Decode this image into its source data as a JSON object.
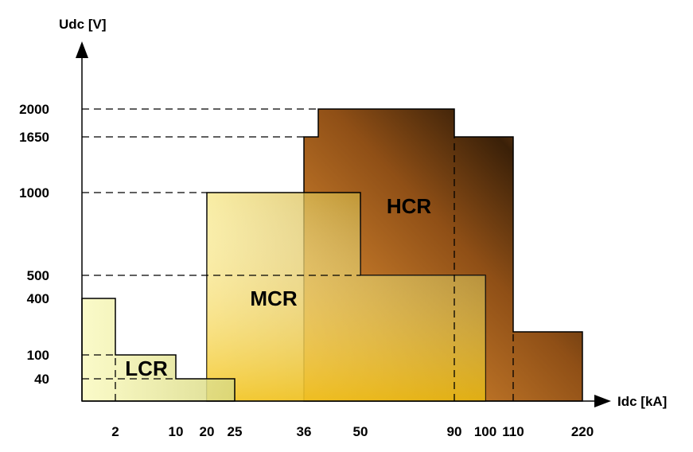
{
  "chart_data": {
    "type": "area",
    "xlabel": "Idc [kA]",
    "ylabel": "Udc [V]",
    "x_ticks": [
      "2",
      "10",
      "20",
      "25",
      "36",
      "50",
      "90",
      "100",
      "110",
      "220"
    ],
    "y_ticks": [
      "40",
      "100",
      "400",
      "500",
      "1000",
      "1650",
      "2000"
    ],
    "grid": false,
    "legend": "none",
    "series": [
      {
        "name": "HCR",
        "color_light": "#f7a23c",
        "color_dark": "#3a2008",
        "outline": [
          [
            36,
            0
          ],
          [
            36,
            1650
          ],
          [
            40,
            1650
          ],
          [
            40,
            2000
          ],
          [
            90,
            2000
          ],
          [
            90,
            1650
          ],
          [
            110,
            1650
          ],
          [
            110,
            200
          ],
          [
            220,
            200
          ],
          [
            220,
            0
          ]
        ]
      },
      {
        "name": "MCR",
        "color_light": "#f7e680",
        "color_dark": "#a07a10",
        "outline": [
          [
            20,
            0
          ],
          [
            20,
            1000
          ],
          [
            50,
            1000
          ],
          [
            50,
            500
          ],
          [
            100,
            500
          ],
          [
            100,
            0
          ]
        ]
      },
      {
        "name": "LCR",
        "color_light": "#fafac0",
        "color_dark": "#d8d880",
        "outline": [
          [
            0,
            0
          ],
          [
            0,
            400
          ],
          [
            2,
            400
          ],
          [
            2,
            100
          ],
          [
            10,
            100
          ],
          [
            10,
            40
          ],
          [
            25,
            40
          ],
          [
            25,
            0
          ]
        ]
      }
    ],
    "guides": [
      {
        "y": 2000,
        "x_end": 40
      },
      {
        "y": 1650,
        "x_end": 36
      },
      {
        "y": 1000,
        "x_end": 20
      },
      {
        "y": 500,
        "x_end": 50
      },
      {
        "y": 100,
        "x_end": 2
      },
      {
        "y": 40,
        "x_end": 10
      },
      {
        "x": 2,
        "y_end": 100
      },
      {
        "x": 90,
        "y_end": 1650
      },
      {
        "x": 110,
        "y_end": 200
      }
    ]
  }
}
